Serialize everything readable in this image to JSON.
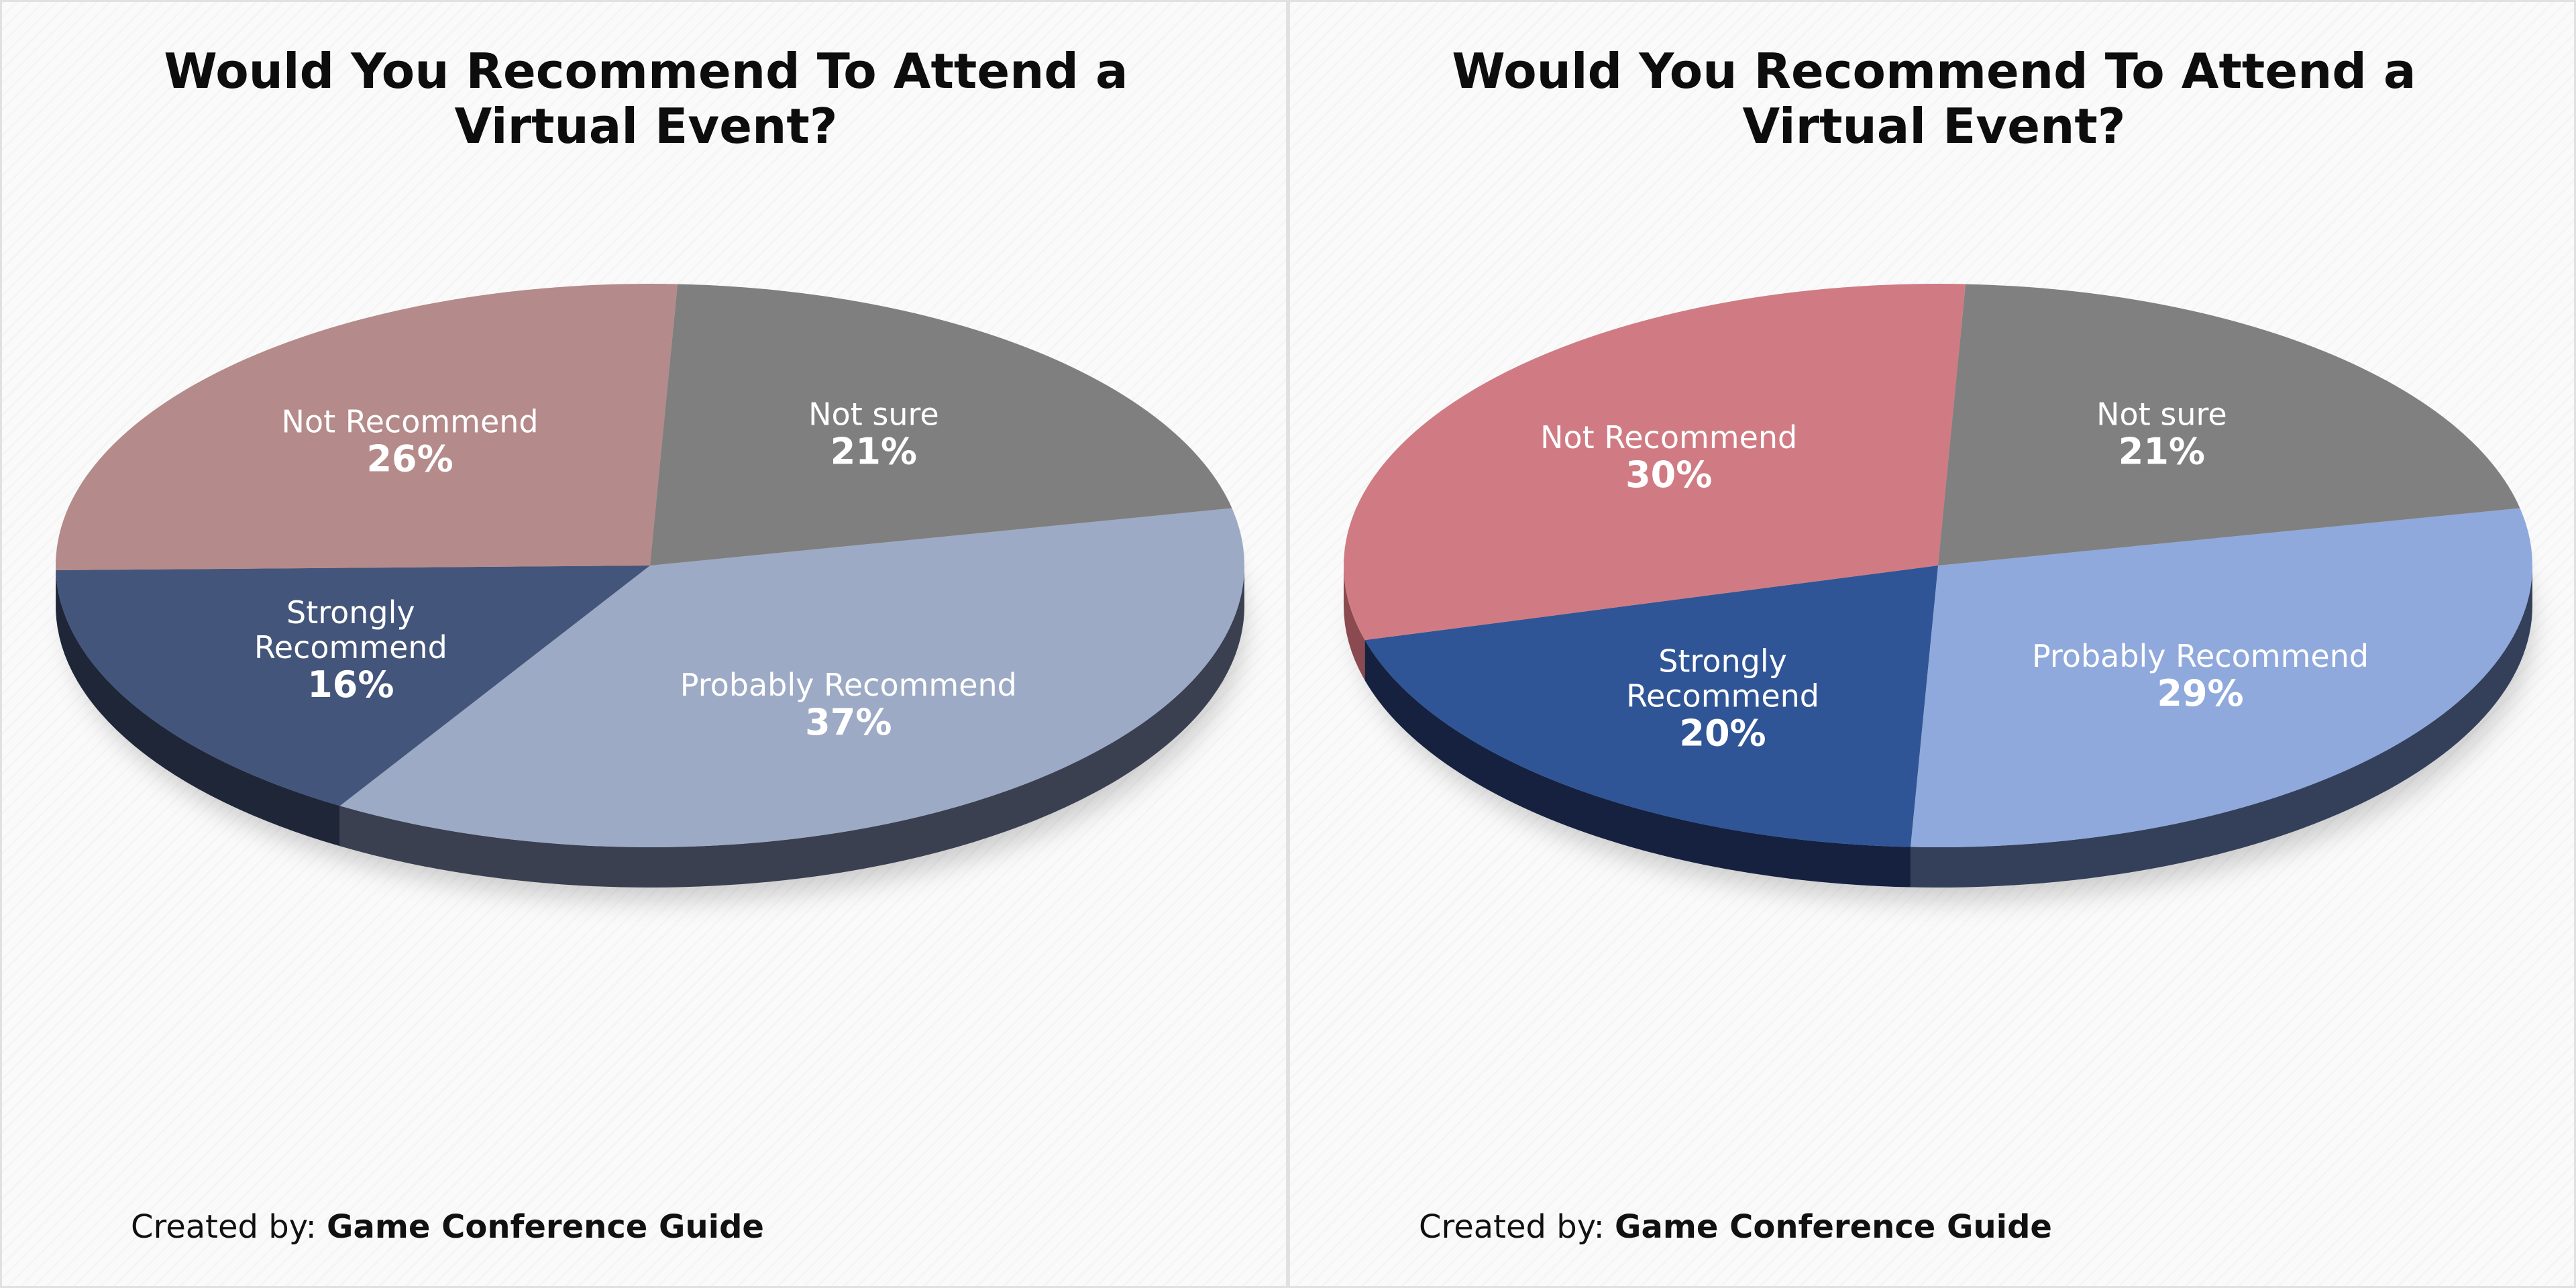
{
  "credit": {
    "prefix": "Created by:",
    "name": "Game Conference Guide"
  },
  "chart_data": [
    {
      "type": "pie",
      "title": "Would You Recommend To Attend a Virtual Event?",
      "slices": [
        {
          "label": "Probably Recommend",
          "value": 37,
          "color": "#9daac5",
          "side": "#3a4050"
        },
        {
          "label": "Strongly Recommend",
          "value": 16,
          "color": "#43557a",
          "side": "#1e2638"
        },
        {
          "label": "Not Recommend",
          "value": 26,
          "color": "#b58a8a",
          "side": "#7a5656"
        },
        {
          "label": "Not sure",
          "value": 21,
          "color": "#7f7f7f",
          "side": "#4a4a4a"
        }
      ]
    },
    {
      "type": "pie",
      "title": "Would You Recommend To Attend a Virtual Event?",
      "slices": [
        {
          "label": "Probably Recommend",
          "value": 29,
          "color": "#8fa9dc",
          "side": "#34405a"
        },
        {
          "label": "Strongly Recommend",
          "value": 20,
          "color": "#2f5596",
          "side": "#15213f"
        },
        {
          "label": "Not Recommend",
          "value": 30,
          "color": "#d07b83",
          "side": "#8a4a50"
        },
        {
          "label": "Not sure",
          "value": 21,
          "color": "#808080",
          "side": "#4a4a4a"
        }
      ]
    }
  ]
}
